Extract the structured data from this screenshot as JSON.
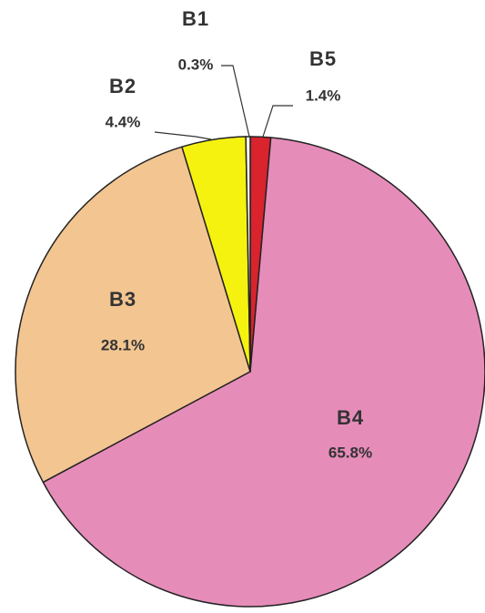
{
  "chart_data": {
    "type": "pie",
    "categories": [
      "B5",
      "B4",
      "B3",
      "B2",
      "B1"
    ],
    "values": [
      1.4,
      65.8,
      28.1,
      4.4,
      0.3
    ],
    "value_labels": [
      "1.4%",
      "65.8%",
      "28.1%",
      "4.4%",
      "0.3%"
    ],
    "colors": [
      "#d9232d",
      "#e68cb9",
      "#f3c590",
      "#f6f20f",
      "#f4f4ee"
    ]
  }
}
